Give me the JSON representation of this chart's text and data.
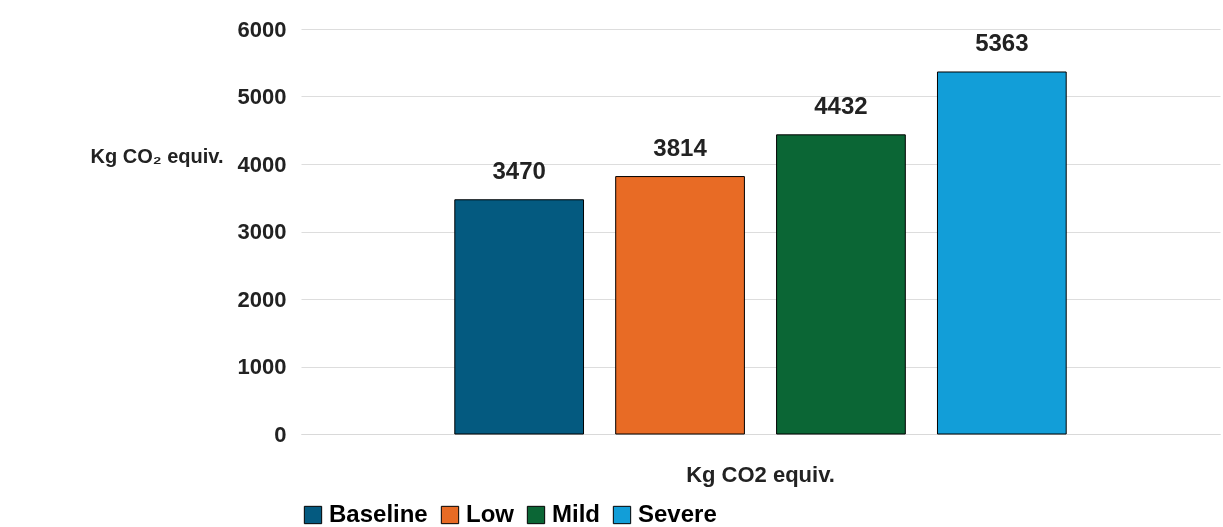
{
  "chart_data": {
    "type": "bar",
    "ylabel": "Kg CO₂ equiv.",
    "categories": [
      "Kg CO2 equiv."
    ],
    "series": [
      {
        "name": "Baseline",
        "color": "#045a80",
        "values": [
          3470
        ]
      },
      {
        "name": "Low",
        "color": "#e86b25",
        "values": [
          3814
        ]
      },
      {
        "name": "Mild",
        "color": "#0b6635",
        "values": [
          4432
        ]
      },
      {
        "name": "Severe",
        "color": "#129ed8",
        "values": [
          5363
        ]
      }
    ],
    "ylim": [
      0,
      6000
    ],
    "yticks": [
      0,
      1000,
      2000,
      3000,
      4000,
      5000,
      6000
    ],
    "grid": "y",
    "legend": "bottom",
    "data_labels": true
  }
}
